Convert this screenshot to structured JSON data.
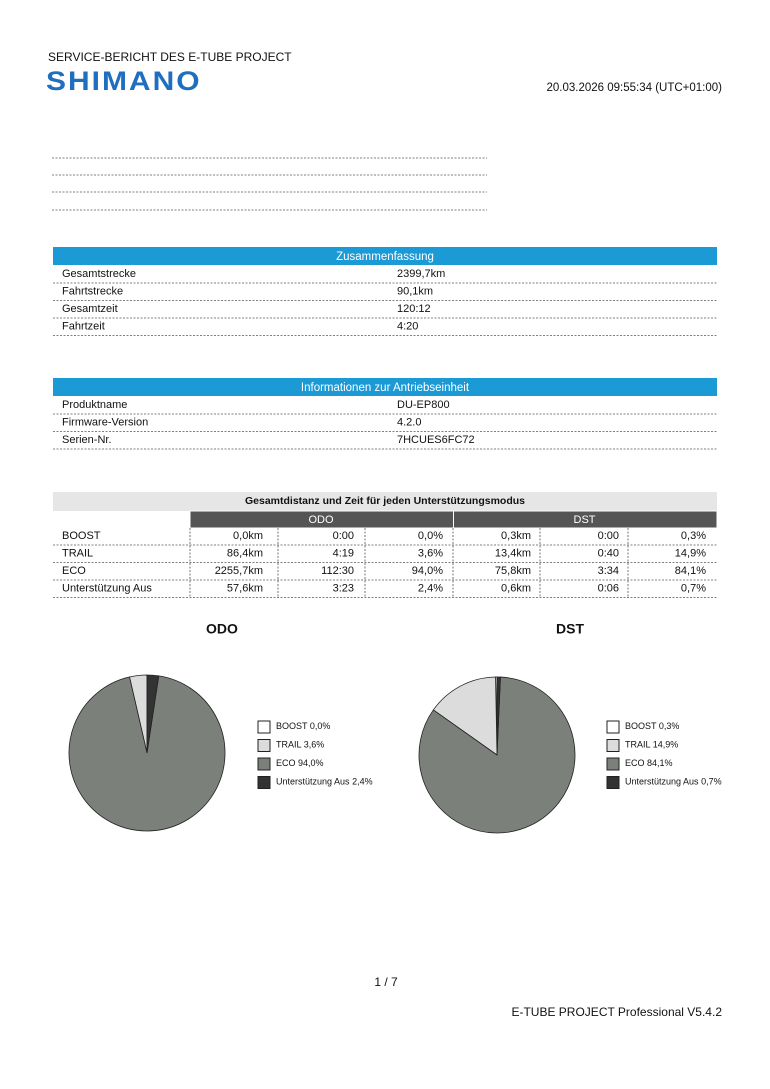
{
  "header": {
    "title": "SERVICE-BERICHT DES E-TUBE PROJECT",
    "brand": "SHIMANO",
    "timestamp": "20.03.2026 09:55:34 (UTC+01:00)"
  },
  "summary": {
    "title": "Zusammenfassung",
    "rows": [
      [
        "Gesamtstrecke",
        "2399,7km"
      ],
      [
        "Fahrtstrecke",
        "90,1km"
      ],
      [
        "Gesamtzeit",
        "120:12"
      ],
      [
        "Fahrtzeit",
        "4:20"
      ]
    ]
  },
  "drive_unit": {
    "title": "Informationen zur Antriebseinheit",
    "rows": [
      [
        "Produktname",
        "DU-EP800"
      ],
      [
        "Firmware-Version",
        "4.2.0"
      ],
      [
        "Serien-Nr.",
        "7HCUES6FC72"
      ]
    ]
  },
  "modes": {
    "title": "Gesamtdistanz und Zeit für jeden Unterstützungsmodus",
    "groups": [
      "ODO",
      "DST"
    ],
    "rows": [
      [
        "BOOST",
        "0,0km",
        "0:00",
        "0,0%",
        "0,3km",
        "0:00",
        "0,3%"
      ],
      [
        "TRAIL",
        "86,4km",
        "4:19",
        "3,6%",
        "13,4km",
        "0:40",
        "14,9%"
      ],
      [
        "ECO",
        "2255,7km",
        "112:30",
        "94,0%",
        "75,8km",
        "3:34",
        "84,1%"
      ],
      [
        "Unterstützung Aus",
        "57,6km",
        "3:23",
        "2,4%",
        "0,6km",
        "0:06",
        "0,7%"
      ]
    ]
  },
  "chart_data": [
    {
      "type": "pie",
      "title": "ODO",
      "categories": [
        "BOOST",
        "TRAIL",
        "ECO",
        "Unterstützung Aus"
      ],
      "values": [
        0.0,
        3.6,
        94.0,
        2.4
      ],
      "value_labels": [
        "0,0%",
        "3,6%",
        "94,0%",
        "2,4%"
      ],
      "colors": [
        "#ffffff",
        "#dcdcdc",
        "#7b807b",
        "#333333"
      ]
    },
    {
      "type": "pie",
      "title": "DST",
      "categories": [
        "BOOST",
        "TRAIL",
        "ECO",
        "Unterstützung Aus"
      ],
      "values": [
        0.3,
        14.9,
        84.1,
        0.7
      ],
      "value_labels": [
        "0,3%",
        "14,9%",
        "84,1%",
        "0,7%"
      ],
      "colors": [
        "#ffffff",
        "#dcdcdc",
        "#7b807b",
        "#333333"
      ]
    }
  ],
  "footer": {
    "page": "1 / 7",
    "version": "E-TUBE PROJECT Professional V5.4.2"
  }
}
